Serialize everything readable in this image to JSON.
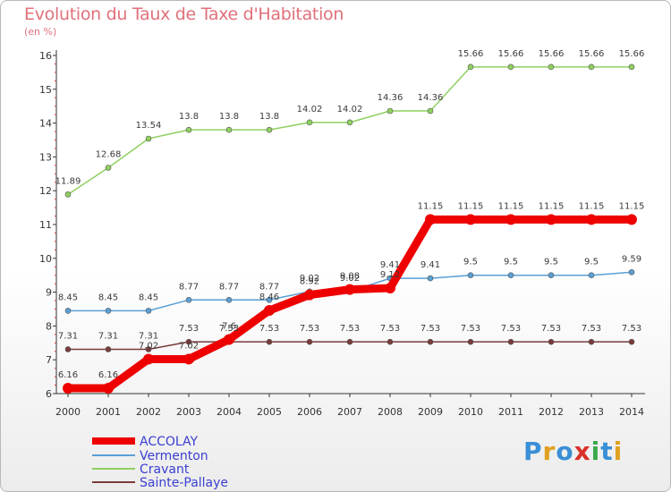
{
  "title": "Evolution du Taux de Taxe d'Habitation",
  "unit_label": "(en %)",
  "logo": {
    "text": "Proxiti",
    "letters": [
      {
        "ch": "P",
        "color": "#3a8fd6"
      },
      {
        "ch": "r",
        "color": "#e0a020"
      },
      {
        "ch": "o",
        "color": "#3a8fd6"
      },
      {
        "ch": "x",
        "color": "#d9302a"
      },
      {
        "ch": "i",
        "color": "#3aa84a"
      },
      {
        "ch": "t",
        "color": "#3a8fd6"
      },
      {
        "ch": "i",
        "color": "#e0a020"
      }
    ]
  },
  "chart_data": {
    "type": "line",
    "title": "Evolution du Taux de Taxe d'Habitation",
    "ylabel": "(en %)",
    "xlabel": "",
    "x": [
      "2000",
      "2001",
      "2002",
      "2003",
      "2004",
      "2005",
      "2006",
      "2007",
      "2008",
      "2009",
      "2010",
      "2011",
      "2012",
      "2013",
      "2014"
    ],
    "ylim": [
      6,
      16
    ],
    "yticks": [
      6,
      7,
      8,
      9,
      10,
      11,
      12,
      13,
      14,
      15,
      16
    ],
    "grid": false,
    "legend_position": "bottom-left",
    "series": [
      {
        "name": "ACCOLAY",
        "color": "#ee0000",
        "width": 9,
        "values": [
          6.16,
          6.16,
          7.02,
          7.02,
          7.6,
          8.46,
          8.92,
          9.08,
          9.12,
          11.15,
          11.15,
          11.15,
          11.15,
          11.15,
          11.15
        ],
        "labels": [
          "6.16",
          "6.16",
          "7.02",
          "7.02",
          "7.6",
          "8.46",
          "8.92",
          "9.08",
          "9.12",
          "11.15",
          "11.15",
          "11.15",
          "11.15",
          "11.15",
          "11.15"
        ]
      },
      {
        "name": "Vermenton",
        "color": "#5a9fd4",
        "width": 1.5,
        "values": [
          8.45,
          8.45,
          8.45,
          8.77,
          8.77,
          8.77,
          9.02,
          9.02,
          9.41,
          9.41,
          9.5,
          9.5,
          9.5,
          9.5,
          9.59
        ],
        "labels": [
          "8.45",
          "8.45",
          "8.45",
          "8.77",
          "8.77",
          "8.77",
          "9.02",
          "9.02",
          "9.41",
          "9.41",
          "9.5",
          "9.5",
          "9.5",
          "9.5",
          "9.59"
        ]
      },
      {
        "name": "Cravant",
        "color": "#8fd060",
        "width": 1.5,
        "values": [
          11.89,
          12.68,
          13.54,
          13.8,
          13.8,
          13.8,
          14.02,
          14.02,
          14.36,
          14.36,
          15.66,
          15.66,
          15.66,
          15.66,
          15.66
        ],
        "labels": [
          "11.89",
          "12.68",
          "13.54",
          "13.8",
          "13.8",
          "13.8",
          "14.02",
          "14.02",
          "14.36",
          "14.36",
          "15.66",
          "15.66",
          "15.66",
          "15.66",
          "15.66"
        ]
      },
      {
        "name": "Sainte-Pallaye",
        "color": "#7a3a3a",
        "width": 1.5,
        "values": [
          7.31,
          7.31,
          7.31,
          7.53,
          7.53,
          7.53,
          7.53,
          7.53,
          7.53,
          7.53,
          7.53,
          7.53,
          7.53,
          7.53,
          7.53
        ],
        "labels": [
          "7.31",
          "7.31",
          "7.31",
          "7.53",
          "7.53",
          "7.53",
          "7.53",
          "7.53",
          "7.53",
          "7.53",
          "7.53",
          "7.53",
          "7.53",
          "7.53",
          "7.53"
        ]
      }
    ]
  }
}
